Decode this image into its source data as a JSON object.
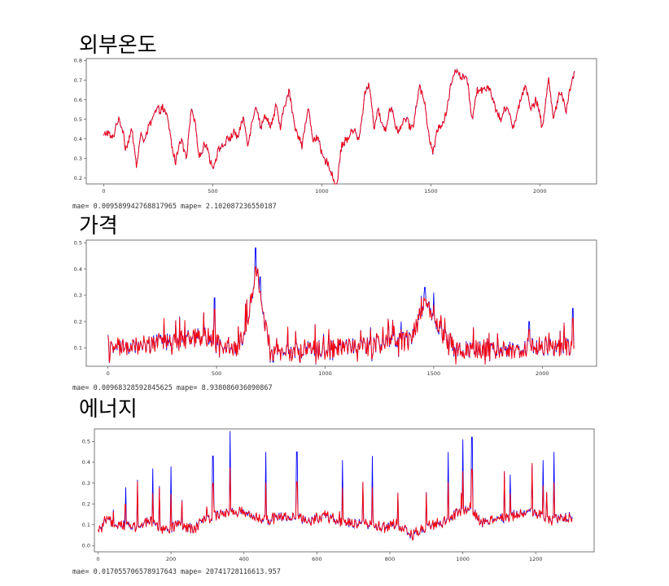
{
  "colors": {
    "actual": "#0000ff",
    "predicted": "#ff0000",
    "axes": "#555555"
  },
  "chart_data": [
    {
      "type": "line",
      "title": "외부온도",
      "metrics": "mae= 0.009589942768817965 mape= 2.102087236550187",
      "xlim": [
        -80,
        2260
      ],
      "ylim": [
        0.17,
        0.81
      ],
      "xticks": [
        0,
        500,
        1000,
        1500,
        2000
      ],
      "yticks": [
        0.2,
        0.3,
        0.4,
        0.5,
        0.6,
        0.7,
        0.8
      ],
      "ytick_labels": [
        "0.2",
        "0.3",
        "0.4",
        "0.5",
        "0.6",
        "0.7",
        "0.8"
      ],
      "n_points": 2160,
      "keypoints": [
        [
          0,
          0.41
        ],
        [
          40,
          0.42
        ],
        [
          60,
          0.48
        ],
        [
          90,
          0.45
        ],
        [
          100,
          0.37
        ],
        [
          130,
          0.42
        ],
        [
          150,
          0.28
        ],
        [
          170,
          0.43
        ],
        [
          180,
          0.36
        ],
        [
          210,
          0.49
        ],
        [
          240,
          0.52
        ],
        [
          270,
          0.58
        ],
        [
          290,
          0.5
        ],
        [
          310,
          0.38
        ],
        [
          330,
          0.3
        ],
        [
          350,
          0.38
        ],
        [
          380,
          0.32
        ],
        [
          400,
          0.53
        ],
        [
          420,
          0.46
        ],
        [
          440,
          0.33
        ],
        [
          470,
          0.36
        ],
        [
          500,
          0.27
        ],
        [
          520,
          0.3
        ],
        [
          540,
          0.37
        ],
        [
          560,
          0.4
        ],
        [
          580,
          0.38
        ],
        [
          600,
          0.45
        ],
        [
          620,
          0.42
        ],
        [
          640,
          0.49
        ],
        [
          660,
          0.4
        ],
        [
          680,
          0.48
        ],
        [
          700,
          0.56
        ],
        [
          720,
          0.48
        ],
        [
          740,
          0.51
        ],
        [
          760,
          0.46
        ],
        [
          790,
          0.57
        ],
        [
          810,
          0.43
        ],
        [
          830,
          0.6
        ],
        [
          850,
          0.64
        ],
        [
          870,
          0.48
        ],
        [
          900,
          0.42
        ],
        [
          910,
          0.35
        ],
        [
          940,
          0.57
        ],
        [
          960,
          0.4
        ],
        [
          990,
          0.37
        ],
        [
          1010,
          0.31
        ],
        [
          1030,
          0.25
        ],
        [
          1050,
          0.21
        ],
        [
          1070,
          0.18
        ],
        [
          1090,
          0.34
        ],
        [
          1110,
          0.41
        ],
        [
          1140,
          0.43
        ],
        [
          1170,
          0.41
        ],
        [
          1200,
          0.63
        ],
        [
          1220,
          0.68
        ],
        [
          1240,
          0.47
        ],
        [
          1260,
          0.52
        ],
        [
          1290,
          0.46
        ],
        [
          1320,
          0.55
        ],
        [
          1340,
          0.48
        ],
        [
          1360,
          0.44
        ],
        [
          1390,
          0.51
        ],
        [
          1420,
          0.45
        ],
        [
          1450,
          0.69
        ],
        [
          1470,
          0.6
        ],
        [
          1490,
          0.4
        ],
        [
          1510,
          0.35
        ],
        [
          1530,
          0.44
        ],
        [
          1550,
          0.46
        ],
        [
          1580,
          0.6
        ],
        [
          1600,
          0.7
        ],
        [
          1620,
          0.78
        ],
        [
          1640,
          0.71
        ],
        [
          1670,
          0.68
        ],
        [
          1690,
          0.52
        ],
        [
          1710,
          0.62
        ],
        [
          1740,
          0.68
        ],
        [
          1770,
          0.64
        ],
        [
          1800,
          0.57
        ],
        [
          1820,
          0.47
        ],
        [
          1850,
          0.6
        ],
        [
          1880,
          0.42
        ],
        [
          1900,
          0.58
        ],
        [
          1930,
          0.66
        ],
        [
          1960,
          0.57
        ],
        [
          1980,
          0.6
        ],
        [
          2010,
          0.46
        ],
        [
          2040,
          0.71
        ],
        [
          2060,
          0.5
        ],
        [
          2090,
          0.65
        ],
        [
          2120,
          0.54
        ],
        [
          2140,
          0.69
        ],
        [
          2160,
          0.72
        ]
      ]
    },
    {
      "type": "line",
      "title": "가격",
      "metrics": "mae= 0.00968328592845625 mape= 8.938086036090867",
      "xlim": [
        -100,
        2250
      ],
      "ylim": [
        0.03,
        0.51
      ],
      "xticks": [
        0,
        500,
        1000,
        1500,
        2000
      ],
      "yticks": [
        0.1,
        0.2,
        0.3,
        0.4,
        0.5
      ],
      "ytick_labels": [
        "0.1",
        "0.2",
        "0.3",
        "0.4",
        "0.5"
      ],
      "n_points": 2150,
      "keypoints": [
        [
          0,
          0.08
        ],
        [
          200,
          0.1
        ],
        [
          450,
          0.13
        ],
        [
          600,
          0.08
        ],
        [
          650,
          0.22
        ],
        [
          680,
          0.4
        ],
        [
          700,
          0.3
        ],
        [
          750,
          0.06
        ],
        [
          900,
          0.08
        ],
        [
          1200,
          0.09
        ],
        [
          1400,
          0.12
        ],
        [
          1460,
          0.27
        ],
        [
          1550,
          0.13
        ],
        [
          1600,
          0.08
        ],
        [
          1800,
          0.08
        ],
        [
          2000,
          0.09
        ],
        [
          2150,
          0.09
        ]
      ],
      "spikes": [
        [
          490,
          0.29
        ],
        [
          680,
          0.48
        ],
        [
          700,
          0.37
        ],
        [
          1460,
          0.33
        ],
        [
          1500,
          0.31
        ],
        [
          2140,
          0.25
        ],
        [
          1350,
          0.2
        ],
        [
          1940,
          0.2
        ]
      ]
    },
    {
      "type": "line",
      "title": "에너지",
      "metrics": "mae= 0.017055706578917643 mape= 20741728116613.957",
      "xlim": [
        -10,
        1360
      ],
      "ylim": [
        -0.03,
        0.56
      ],
      "xticks": [
        0,
        200,
        400,
        600,
        800,
        1000,
        1200
      ],
      "yticks": [
        0.0,
        0.1,
        0.2,
        0.3,
        0.4,
        0.5
      ],
      "ytick_labels": [
        "0.0",
        "0.1",
        "0.2",
        "0.3",
        "0.4",
        "0.5"
      ],
      "n_points": 1300,
      "keypoints": [
        [
          0,
          0.06
        ],
        [
          20,
          0.12
        ],
        [
          60,
          0.1
        ],
        [
          100,
          0.09
        ],
        [
          140,
          0.12
        ],
        [
          180,
          0.07
        ],
        [
          220,
          0.1
        ],
        [
          260,
          0.08
        ],
        [
          300,
          0.13
        ],
        [
          340,
          0.15
        ],
        [
          380,
          0.17
        ],
        [
          420,
          0.14
        ],
        [
          460,
          0.12
        ],
        [
          500,
          0.14
        ],
        [
          540,
          0.13
        ],
        [
          580,
          0.12
        ],
        [
          620,
          0.14
        ],
        [
          660,
          0.12
        ],
        [
          700,
          0.11
        ],
        [
          740,
          0.1
        ],
        [
          780,
          0.09
        ],
        [
          820,
          0.1
        ],
        [
          860,
          0.05
        ],
        [
          900,
          0.09
        ],
        [
          940,
          0.11
        ],
        [
          980,
          0.15
        ],
        [
          1020,
          0.19
        ],
        [
          1050,
          0.11
        ],
        [
          1100,
          0.13
        ],
        [
          1150,
          0.15
        ],
        [
          1200,
          0.16
        ],
        [
          1240,
          0.12
        ],
        [
          1280,
          0.14
        ],
        [
          1300,
          0.14
        ]
      ],
      "spikes": [
        [
          362,
          0.55
        ],
        [
          315,
          0.43
        ],
        [
          460,
          0.45
        ],
        [
          545,
          0.45
        ],
        [
          670,
          0.41
        ],
        [
          752,
          0.43
        ],
        [
          960,
          0.45
        ],
        [
          1000,
          0.51
        ],
        [
          1025,
          0.52
        ],
        [
          1250,
          0.45
        ],
        [
          1220,
          0.41
        ],
        [
          1130,
          0.34
        ],
        [
          75,
          0.28
        ],
        [
          150,
          0.37
        ],
        [
          200,
          0.38
        ]
      ]
    }
  ]
}
